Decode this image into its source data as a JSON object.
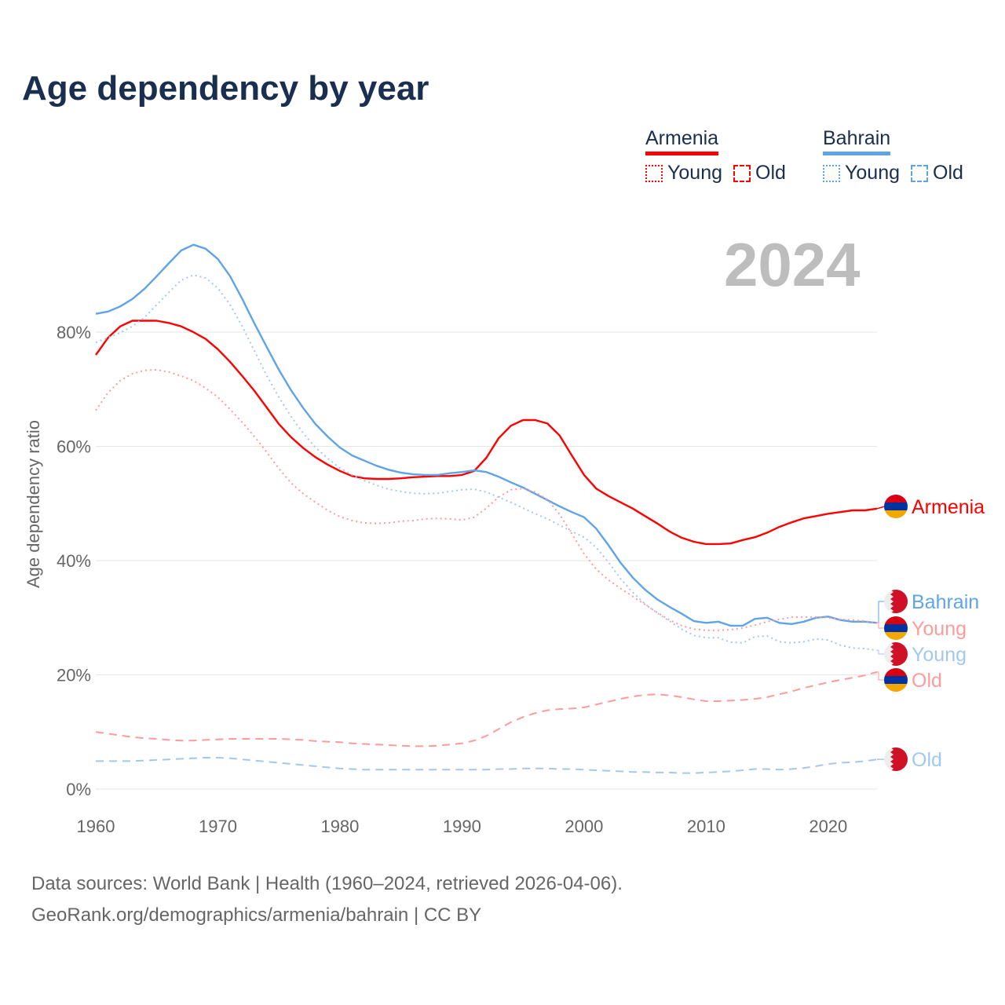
{
  "title": "Age dependency by year",
  "legend": {
    "armenia": {
      "label": "Armenia",
      "young": "Young",
      "old": "Old"
    },
    "bahrain": {
      "label": "Bahrain",
      "young": "Young",
      "old": "Old"
    }
  },
  "year_display": "2024",
  "footer": {
    "line1": "Data sources: World Bank | Health (1960–2024, retrieved 2026-04-06).",
    "line2": "GeoRank.org/demographics/armenia/bahrain | CC BY"
  },
  "colors": {
    "armenia": "#ff0000",
    "armenia_light": "#ff9b9b",
    "bahrain": "#5fa4e8",
    "bahrain_light": "#a3c8f0"
  },
  "chart_data": {
    "type": "line",
    "title": "Age dependency by year",
    "xlabel": "",
    "ylabel": "Age dependency ratio",
    "xlim": [
      1960,
      2024
    ],
    "ylim": [
      0,
      100
    ],
    "x_start": 1960,
    "xticks": [
      1960,
      1970,
      1980,
      1990,
      2000,
      2010,
      2020
    ],
    "xtick_labels": [
      "1960",
      "1970",
      "1980",
      "1990",
      "2000",
      "2010",
      "2020"
    ],
    "yticks": [
      0,
      20,
      40,
      60,
      80
    ],
    "ytick_labels": [
      "0%",
      "20%",
      "40%",
      "60%",
      "80%"
    ],
    "grid": true,
    "series": [
      {
        "name": "Armenia",
        "end_label": "Armenia",
        "flag": "armenia",
        "style": "solid",
        "color": "#ff0000",
        "values": [
          76.0,
          79.0,
          81.0,
          82.0,
          82.0,
          82.0,
          81.6,
          81.0,
          80.0,
          78.8,
          77.0,
          74.8,
          72.3,
          69.7,
          66.8,
          63.9,
          61.6,
          59.7,
          58.1,
          56.8,
          55.7,
          54.8,
          54.4,
          54.3,
          54.3,
          54.4,
          54.6,
          54.7,
          54.8,
          54.8,
          55.0,
          55.7,
          58.0,
          61.4,
          63.6,
          64.6,
          64.6,
          64.0,
          61.9,
          58.4,
          55.0,
          52.6,
          51.3,
          50.2,
          49.1,
          47.8,
          46.5,
          45.1,
          44.0,
          43.3,
          42.9,
          42.9,
          43.0,
          43.6,
          44.1,
          44.9,
          45.9,
          46.7,
          47.4,
          47.8,
          48.2,
          48.5,
          48.8,
          48.8,
          49.1
        ]
      },
      {
        "name": "Bahrain",
        "end_label": "Bahrain",
        "flag": "bahrain",
        "style": "solid",
        "color": "#5fa4e8",
        "values": [
          83.2,
          83.6,
          84.5,
          85.8,
          87.6,
          89.8,
          92.1,
          94.3,
          95.3,
          94.6,
          92.8,
          89.8,
          85.8,
          81.5,
          77.4,
          73.4,
          69.8,
          66.7,
          63.9,
          61.7,
          59.8,
          58.4,
          57.5,
          56.6,
          55.9,
          55.4,
          55.1,
          55.0,
          55.0,
          55.3,
          55.5,
          55.8,
          55.5,
          54.7,
          53.7,
          52.8,
          51.7,
          50.6,
          49.5,
          48.5,
          47.6,
          45.6,
          42.7,
          39.6,
          37.0,
          34.9,
          33.2,
          31.9,
          30.7,
          29.4,
          29.1,
          29.3,
          28.6,
          28.6,
          29.8,
          30.0,
          29.1,
          28.9,
          29.3,
          30.0,
          30.2,
          29.6,
          29.3,
          29.3,
          29.1
        ]
      },
      {
        "name": "Armenia Young",
        "end_label": "Young",
        "flag": "armenia",
        "style": "dotted",
        "color": "#ff9b9b",
        "values": [
          66.3,
          69.4,
          71.5,
          72.7,
          73.3,
          73.4,
          73.0,
          72.3,
          71.5,
          70.2,
          68.6,
          66.5,
          64.2,
          61.7,
          59.0,
          56.1,
          53.6,
          51.7,
          50.2,
          48.8,
          47.7,
          47.0,
          46.6,
          46.5,
          46.6,
          46.9,
          47.0,
          47.3,
          47.4,
          47.3,
          47.1,
          47.6,
          49.2,
          51.1,
          52.4,
          52.6,
          52.0,
          50.7,
          48.1,
          44.7,
          41.2,
          38.5,
          36.6,
          35.1,
          33.7,
          32.3,
          30.9,
          29.6,
          28.6,
          28.0,
          27.8,
          27.8,
          27.9,
          28.2,
          28.7,
          29.3,
          29.7,
          30.1,
          30.1,
          30.1,
          30.0,
          29.7,
          29.6,
          29.4,
          29.1
        ]
      },
      {
        "name": "Bahrain Young",
        "end_label": "Young",
        "flag": "bahrain",
        "style": "dotted",
        "color": "#a3c8f0",
        "values": [
          78.2,
          79.0,
          79.9,
          81.0,
          82.6,
          84.8,
          87.0,
          89.1,
          90.0,
          89.5,
          87.7,
          84.8,
          81.0,
          76.7,
          72.4,
          68.6,
          65.2,
          62.3,
          59.8,
          57.9,
          56.2,
          55.0,
          54.0,
          53.2,
          52.5,
          52.1,
          51.8,
          51.7,
          51.8,
          52.1,
          52.4,
          52.5,
          52.0,
          51.1,
          50.2,
          49.2,
          48.2,
          47.3,
          46.2,
          45.1,
          44.1,
          42.3,
          39.7,
          36.8,
          34.4,
          32.4,
          30.8,
          29.4,
          28.0,
          26.9,
          26.5,
          26.5,
          25.7,
          25.6,
          26.7,
          26.8,
          25.8,
          25.6,
          25.8,
          26.3,
          26.1,
          25.2,
          24.7,
          24.6,
          24.3
        ]
      },
      {
        "name": "Armenia Old",
        "end_label": "Old",
        "flag": "armenia",
        "style": "dashed",
        "color": "#ff9b9b",
        "values": [
          10.0,
          9.7,
          9.4,
          9.1,
          8.9,
          8.8,
          8.6,
          8.5,
          8.5,
          8.6,
          8.7,
          8.8,
          8.8,
          8.8,
          8.8,
          8.8,
          8.7,
          8.6,
          8.4,
          8.3,
          8.2,
          8.0,
          7.9,
          7.8,
          7.7,
          7.6,
          7.5,
          7.5,
          7.6,
          7.8,
          8.0,
          8.5,
          9.3,
          10.5,
          11.7,
          12.6,
          13.3,
          13.8,
          14.0,
          14.1,
          14.3,
          14.8,
          15.3,
          15.8,
          16.2,
          16.5,
          16.6,
          16.4,
          16.1,
          15.7,
          15.4,
          15.4,
          15.5,
          15.6,
          15.8,
          16.1,
          16.6,
          17.1,
          17.7,
          18.2,
          18.7,
          19.1,
          19.5,
          19.9,
          20.5
        ]
      },
      {
        "name": "Bahrain Old",
        "end_label": "Old",
        "flag": "bahrain",
        "style": "dashed",
        "color": "#a3c8f0",
        "values": [
          4.9,
          4.9,
          4.9,
          4.9,
          5.0,
          5.1,
          5.2,
          5.3,
          5.4,
          5.5,
          5.5,
          5.4,
          5.2,
          5.0,
          4.8,
          4.6,
          4.4,
          4.2,
          4.0,
          3.8,
          3.6,
          3.5,
          3.4,
          3.4,
          3.4,
          3.4,
          3.4,
          3.4,
          3.4,
          3.4,
          3.4,
          3.4,
          3.4,
          3.5,
          3.5,
          3.6,
          3.6,
          3.6,
          3.5,
          3.5,
          3.4,
          3.3,
          3.2,
          3.1,
          3.0,
          3.0,
          2.9,
          2.9,
          2.8,
          2.8,
          2.9,
          3.0,
          3.1,
          3.3,
          3.5,
          3.5,
          3.4,
          3.5,
          3.7,
          4.0,
          4.4,
          4.6,
          4.7,
          4.9,
          5.2
        ]
      }
    ]
  }
}
